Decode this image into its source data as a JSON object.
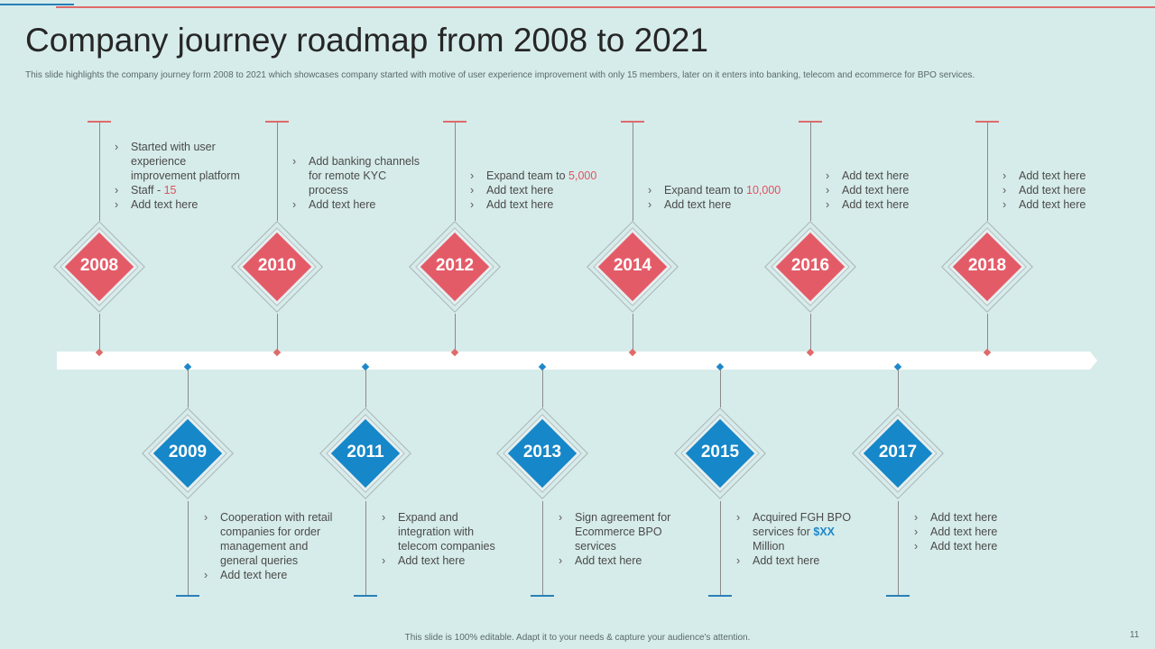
{
  "title": "Company journey roadmap from 2008 to 2021",
  "subtitle": "This slide highlights the company journey form 2008 to 2021 which showcases company started with motive of user experience improvement with only 15 members, later on it enters into banking, telecom and ecommerce for BPO  services.",
  "footer": "This slide is 100% editable. Adapt it to your needs & capture your audience's attention.",
  "page_number": "11",
  "colors": {
    "top_accent": "#e45b68",
    "bottom_accent": "#1687c8",
    "background": "#d6ecea"
  },
  "top_milestones": [
    {
      "year": "2008",
      "items": [
        {
          "text": "Started with user experience improvement  platform"
        },
        {
          "text": "Staff - ",
          "highlight": "15"
        },
        {
          "text": "Add text here"
        }
      ]
    },
    {
      "year": "2010",
      "items": [
        {
          "text": "Add banking channels for remote KYC process"
        },
        {
          "text": "Add text here"
        }
      ]
    },
    {
      "year": "2012",
      "items": [
        {
          "text": "Expand team to ",
          "highlight": "5,000"
        },
        {
          "text": "Add text here"
        },
        {
          "text": "Add text here"
        }
      ]
    },
    {
      "year": "2014",
      "items": [
        {
          "text": "Expand team to ",
          "highlight": "10,000"
        },
        {
          "text": "Add text here"
        }
      ]
    },
    {
      "year": "2016",
      "items": [
        {
          "text": "Add text here"
        },
        {
          "text": "Add text here"
        },
        {
          "text": "Add text here"
        }
      ]
    },
    {
      "year": "2018",
      "items": [
        {
          "text": "Add text here"
        },
        {
          "text": "Add text here"
        },
        {
          "text": "Add text here"
        }
      ]
    }
  ],
  "bottom_milestones": [
    {
      "year": "2009",
      "items": [
        {
          "text": "Cooperation  with retail companies for order management and general queries"
        },
        {
          "text": "Add text here"
        }
      ]
    },
    {
      "year": "2011",
      "items": [
        {
          "text": "Expand and integration with telecom companies"
        },
        {
          "text": "Add text here"
        }
      ]
    },
    {
      "year": "2013",
      "items": [
        {
          "text": "Sign agreement for Ecommerce BPO services"
        },
        {
          "text": "Add text here"
        }
      ]
    },
    {
      "year": "2015",
      "items": [
        {
          "text": "Acquired FGH BPO services for ",
          "highlight": "$XX",
          "suffix": " Million"
        },
        {
          "text": "Add text here"
        }
      ]
    },
    {
      "year": "2017",
      "items": [
        {
          "text": "Add text here"
        },
        {
          "text": "Add text here"
        },
        {
          "text": "Add text here"
        }
      ]
    }
  ]
}
